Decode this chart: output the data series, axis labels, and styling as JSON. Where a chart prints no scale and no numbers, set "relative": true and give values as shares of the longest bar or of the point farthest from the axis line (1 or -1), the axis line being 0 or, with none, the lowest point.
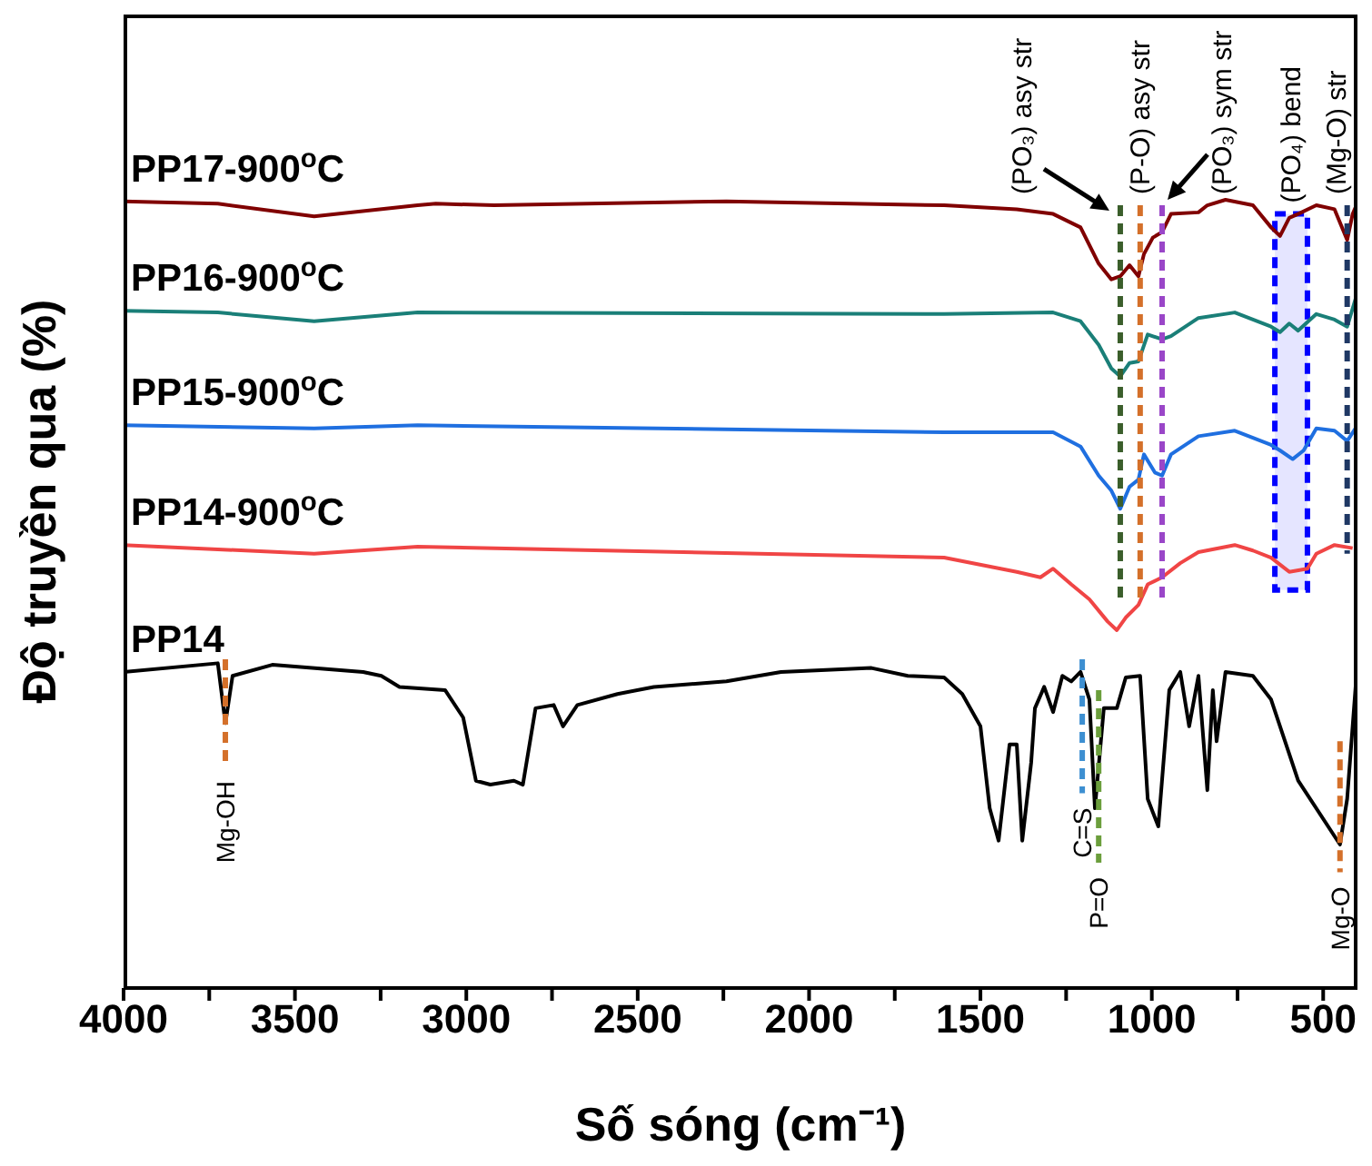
{
  "chart_data": {
    "type": "line",
    "relative": true,
    "xlabel": "Số sóng (cm⁻¹)",
    "ylabel": "Độ truyền qua (%)",
    "xlim": [
      4000,
      400
    ],
    "xticks": [
      4000,
      {
        "value": 3750,
        "label": null
      },
      3500,
      {
        "value": 3250,
        "label": null
      },
      3000,
      {
        "value": 2750,
        "label": null
      },
      2500,
      {
        "value": 2250,
        "label": null
      },
      2000,
      {
        "value": 1750,
        "label": null
      },
      1500,
      {
        "value": 1250,
        "label": null
      },
      1000,
      {
        "value": 750,
        "label": null
      },
      500
    ],
    "marker": "none",
    "line_style": "solid",
    "grid": false,
    "series": [
      {
        "name": "PP17-900$^{o}$C",
        "color": "#800000",
        "x": [
          4000,
          3725,
          3444,
          3142,
          3089,
          2919,
          2241,
          1606,
          1394,
          1288,
          1208,
          1155,
          1118,
          1092,
          1065,
          1039,
          1023,
          997,
          970,
          944,
          864,
          838,
          785,
          705,
          652,
          626,
          599,
          573,
          520,
          467,
          430,
          414,
          403
        ],
        "values": [
          0.998,
          0.995,
          0.979,
          0.993,
          0.995,
          0.993,
          0.998,
          0.993,
          0.988,
          0.982,
          0.965,
          0.919,
          0.899,
          0.903,
          0.917,
          0.903,
          0.931,
          0.952,
          0.959,
          0.982,
          0.984,
          0.993,
          1.0,
          0.993,
          0.965,
          0.954,
          0.977,
          0.982,
          0.993,
          0.988,
          0.949,
          0.982,
          0.993
        ]
      },
      {
        "name": "PP16-900$^{o}$C",
        "color": "#1a7f78",
        "x": [
          4000,
          3725,
          3444,
          3142,
          1606,
          1288,
          1208,
          1155,
          1118,
          1092,
          1065,
          1039,
          1012,
          970,
          944,
          864,
          758,
          652,
          626,
          599,
          573,
          520,
          467,
          430,
          403
        ],
        "values": [
          0.859,
          0.857,
          0.846,
          0.857,
          0.855,
          0.857,
          0.846,
          0.816,
          0.786,
          0.776,
          0.793,
          0.795,
          0.829,
          0.823,
          0.827,
          0.85,
          0.857,
          0.839,
          0.832,
          0.843,
          0.834,
          0.855,
          0.848,
          0.839,
          0.878
        ]
      },
      {
        "name": "PP15-900$^{o}$C",
        "color": "#1f6fe0",
        "x": [
          4000,
          3444,
          3142,
          1606,
          1288,
          1208,
          1155,
          1118,
          1092,
          1065,
          1039,
          1023,
          991,
          970,
          944,
          864,
          758,
          652,
          626,
          589,
          557,
          520,
          467,
          430,
          403
        ],
        "values": [
          0.714,
          0.71,
          0.714,
          0.705,
          0.705,
          0.687,
          0.65,
          0.631,
          0.608,
          0.636,
          0.645,
          0.677,
          0.654,
          0.65,
          0.677,
          0.7,
          0.707,
          0.689,
          0.682,
          0.671,
          0.682,
          0.71,
          0.707,
          0.694,
          0.712
        ]
      },
      {
        "name": "PP14-900$^{o}$C",
        "color": "#f04545",
        "x": [
          4000,
          3444,
          3142,
          1606,
          1394,
          1325,
          1288,
          1235,
          1182,
          1129,
          1102,
          1076,
          1039,
          1012,
          970,
          917,
          864,
          758,
          705,
          652,
          599,
          546,
          520,
          467,
          414
        ],
        "values": [
          0.562,
          0.551,
          0.56,
          0.546,
          0.528,
          0.521,
          0.532,
          0.512,
          0.493,
          0.465,
          0.454,
          0.47,
          0.486,
          0.512,
          0.521,
          0.539,
          0.553,
          0.562,
          0.555,
          0.546,
          0.528,
          0.532,
          0.551,
          0.562,
          0.558
        ]
      },
      {
        "name": "PP14",
        "color": "#000000",
        "x": [
          4000,
          3725,
          3703,
          3682,
          3566,
          3301,
          3248,
          3195,
          3062,
          3009,
          2972,
          2930,
          2861,
          2835,
          2798,
          2745,
          2718,
          2676,
          2559,
          2453,
          2241,
          2082,
          1818,
          1712,
          1606,
          1553,
          1500,
          1473,
          1447,
          1415,
          1394,
          1378,
          1352,
          1341,
          1314,
          1288,
          1261,
          1235,
          1208,
          1182,
          1166,
          1140,
          1102,
          1076,
          1034,
          1012,
          981,
          949,
          917,
          891,
          864,
          838,
          822,
          811,
          785,
          705,
          652,
          573,
          451,
          430,
          403
        ],
        "values": [
          0.401,
          0.412,
          0.336,
          0.396,
          0.41,
          0.401,
          0.396,
          0.382,
          0.378,
          0.343,
          0.263,
          0.258,
          0.263,
          0.258,
          0.355,
          0.359,
          0.332,
          0.359,
          0.373,
          0.382,
          0.389,
          0.401,
          0.406,
          0.396,
          0.394,
          0.373,
          0.332,
          0.228,
          0.187,
          0.309,
          0.309,
          0.187,
          0.286,
          0.355,
          0.382,
          0.35,
          0.396,
          0.389,
          0.401,
          0.366,
          0.228,
          0.355,
          0.355,
          0.394,
          0.396,
          0.24,
          0.205,
          0.378,
          0.401,
          0.332,
          0.396,
          0.251,
          0.378,
          0.313,
          0.401,
          0.396,
          0.366,
          0.263,
          0.182,
          0.24,
          0.396
        ]
      }
    ],
    "ref_lines": [
      {
        "axis": "x",
        "value": 1092,
        "color": "#3b5e2b",
        "line_style": "dashed"
      },
      {
        "axis": "x",
        "value": 1034,
        "label": "(P-O) asy str",
        "color": "#d4702a",
        "line_style": "dashed"
      },
      {
        "axis": "x",
        "value": 970,
        "color": "#9a46c8",
        "line_style": "dashed"
      },
      {
        "axis": "x",
        "value": 430,
        "label": "(Mg-O) str",
        "color": "#1f3864",
        "line_style": "dashed"
      },
      {
        "axis": "x",
        "value": 3703,
        "label": "Mg-OH",
        "color": "#d4702a",
        "line_style": "dashed"
      },
      {
        "axis": "x",
        "value": 1203,
        "label": "C=S",
        "color": "#3d8fd1",
        "line_style": "dashed"
      },
      {
        "axis": "x",
        "value": 1155,
        "label": "P=O",
        "color": "#6b9e3c",
        "line_style": "dashed"
      },
      {
        "axis": "x",
        "value": 451,
        "label": "Mg-O",
        "color": "#d4702a",
        "line_style": "dashed"
      }
    ],
    "bands": [
      {
        "axis": "x",
        "from": 641,
        "to": 546,
        "label": "(PO₄) bend",
        "color": "#0000ff"
      }
    ],
    "annotations": [
      "(PO₃) asy str",
      "(PO₃) sym str"
    ]
  }
}
